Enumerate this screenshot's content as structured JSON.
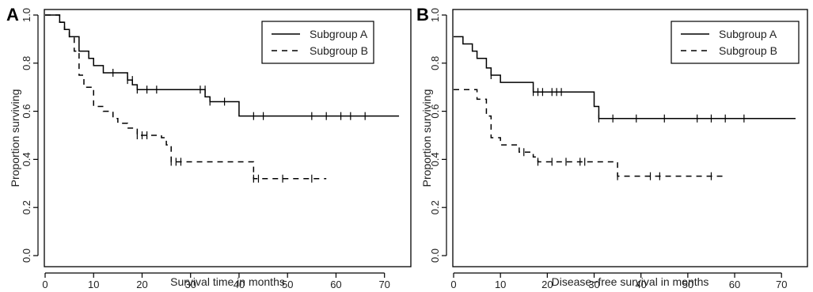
{
  "chart_data": [
    {
      "type": "line",
      "panel_label": "A",
      "xlabel": "Survival time in months",
      "ylabel": "Proportion surviving",
      "xlim": [
        0,
        75
      ],
      "ylim": [
        0,
        1.0
      ],
      "xticks": [
        0,
        10,
        20,
        30,
        40,
        50,
        60,
        70
      ],
      "yticks": [
        0.0,
        0.2,
        0.4,
        0.6,
        0.8,
        1.0
      ],
      "grid": false,
      "legend_position": "top-right",
      "series": [
        {
          "name": "Subgroup A",
          "style": "solid",
          "steps": [
            [
              0,
              1.0
            ],
            [
              3,
              0.97
            ],
            [
              4,
              0.94
            ],
            [
              5,
              0.91
            ],
            [
              7,
              0.85
            ],
            [
              9,
              0.82
            ],
            [
              10,
              0.79
            ],
            [
              12,
              0.76
            ],
            [
              17,
              0.73
            ],
            [
              18,
              0.71
            ],
            [
              19,
              0.69
            ],
            [
              33,
              0.66
            ],
            [
              34,
              0.64
            ],
            [
              40,
              0.58
            ],
            [
              73,
              0.58
            ]
          ],
          "censored": [
            [
              14,
              0.76
            ],
            [
              17,
              0.73
            ],
            [
              18,
              0.73
            ],
            [
              19,
              0.69
            ],
            [
              21,
              0.69
            ],
            [
              23,
              0.69
            ],
            [
              32,
              0.69
            ],
            [
              33,
              0.69
            ],
            [
              34,
              0.64
            ],
            [
              37,
              0.64
            ],
            [
              43,
              0.58
            ],
            [
              45,
              0.58
            ],
            [
              55,
              0.58
            ],
            [
              58,
              0.58
            ],
            [
              61,
              0.58
            ],
            [
              63,
              0.58
            ],
            [
              66,
              0.58
            ]
          ]
        },
        {
          "name": "Subgroup B",
          "style": "dashed",
          "steps": [
            [
              0,
              1.0
            ],
            [
              3,
              0.97
            ],
            [
              4,
              0.94
            ],
            [
              5,
              0.91
            ],
            [
              6,
              0.85
            ],
            [
              7,
              0.75
            ],
            [
              8,
              0.7
            ],
            [
              10,
              0.62
            ],
            [
              12,
              0.6
            ],
            [
              14,
              0.57
            ],
            [
              15,
              0.55
            ],
            [
              17,
              0.53
            ],
            [
              19,
              0.5
            ],
            [
              24,
              0.49
            ],
            [
              25,
              0.46
            ],
            [
              26,
              0.39
            ],
            [
              43,
              0.32
            ],
            [
              58,
              0.32
            ]
          ],
          "censored": [
            [
              19,
              0.5
            ],
            [
              20,
              0.5
            ],
            [
              21,
              0.5
            ],
            [
              26,
              0.39
            ],
            [
              27,
              0.39
            ],
            [
              28,
              0.39
            ],
            [
              43,
              0.32
            ],
            [
              44,
              0.32
            ],
            [
              49,
              0.32
            ],
            [
              55,
              0.32
            ]
          ]
        }
      ]
    },
    {
      "type": "line",
      "panel_label": "B",
      "xlabel": "Disease−free survival in months",
      "ylabel": "Proportion surviving",
      "xlim": [
        0,
        75
      ],
      "ylim": [
        0,
        1.0
      ],
      "xticks": [
        0,
        10,
        20,
        30,
        40,
        50,
        60,
        70
      ],
      "yticks": [
        0.0,
        0.2,
        0.4,
        0.6,
        0.8,
        1.0
      ],
      "grid": false,
      "legend_position": "top-right",
      "series": [
        {
          "name": "Subgroup A",
          "style": "solid",
          "steps": [
            [
              0,
              0.91
            ],
            [
              2,
              0.88
            ],
            [
              4,
              0.85
            ],
            [
              5,
              0.82
            ],
            [
              7,
              0.78
            ],
            [
              8,
              0.75
            ],
            [
              10,
              0.72
            ],
            [
              17,
              0.68
            ],
            [
              30,
              0.62
            ],
            [
              31,
              0.57
            ],
            [
              73,
              0.57
            ]
          ],
          "censored": [
            [
              8,
              0.75
            ],
            [
              17,
              0.68
            ],
            [
              18,
              0.68
            ],
            [
              19,
              0.68
            ],
            [
              21,
              0.68
            ],
            [
              22,
              0.68
            ],
            [
              23,
              0.68
            ],
            [
              31,
              0.57
            ],
            [
              34,
              0.57
            ],
            [
              39,
              0.57
            ],
            [
              45,
              0.57
            ],
            [
              52,
              0.57
            ],
            [
              55,
              0.57
            ],
            [
              58,
              0.57
            ],
            [
              62,
              0.57
            ]
          ]
        },
        {
          "name": "Subgroup B",
          "style": "dashed",
          "steps": [
            [
              0,
              0.69
            ],
            [
              5,
              0.65
            ],
            [
              7,
              0.58
            ],
            [
              8,
              0.49
            ],
            [
              10,
              0.46
            ],
            [
              14,
              0.43
            ],
            [
              17,
              0.41
            ],
            [
              18,
              0.39
            ],
            [
              35,
              0.33
            ],
            [
              58,
              0.33
            ]
          ],
          "censored": [
            [
              15,
              0.43
            ],
            [
              18,
              0.39
            ],
            [
              21,
              0.39
            ],
            [
              24,
              0.39
            ],
            [
              27,
              0.39
            ],
            [
              28,
              0.39
            ],
            [
              35,
              0.33
            ],
            [
              42,
              0.33
            ],
            [
              44,
              0.33
            ],
            [
              55,
              0.33
            ]
          ]
        }
      ]
    }
  ]
}
